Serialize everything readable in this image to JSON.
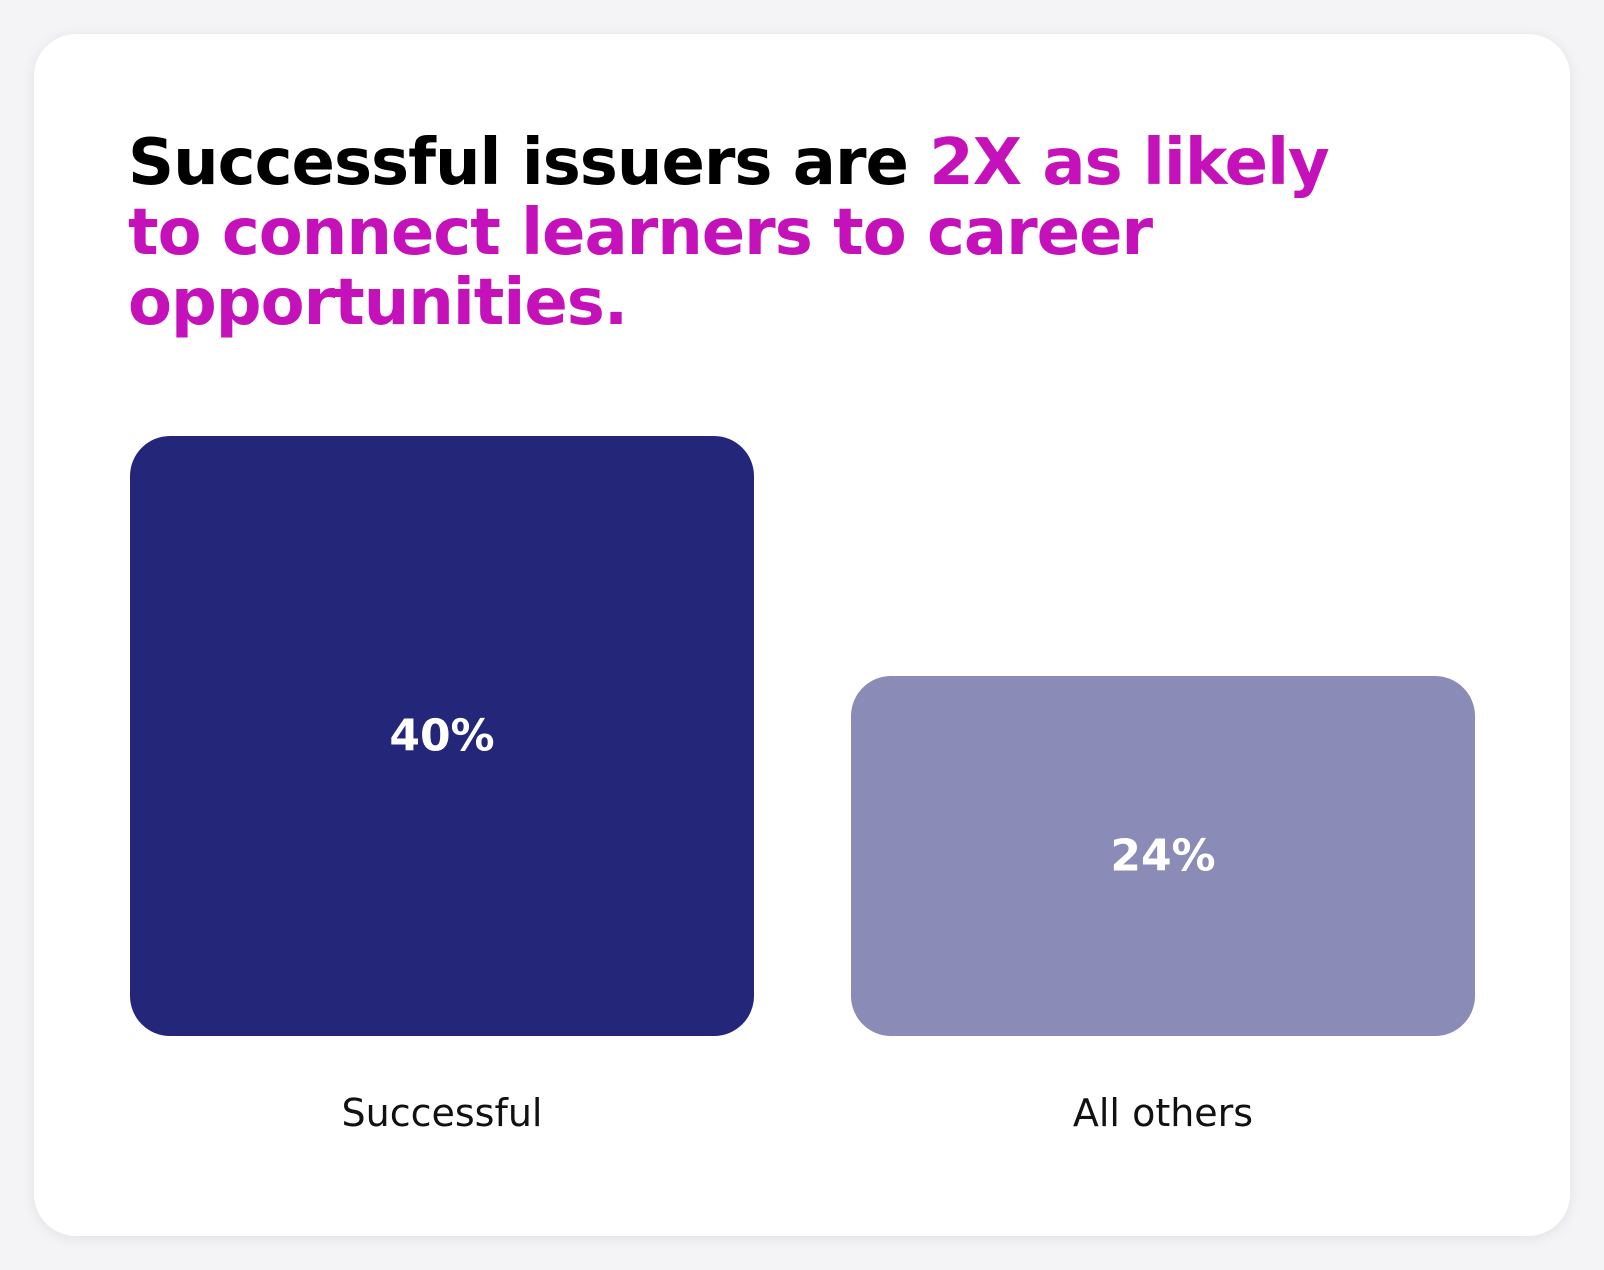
{
  "title": {
    "part1": "Successful issuers are ",
    "part2": "2X as likely to connect learners to career opportunities."
  },
  "colors": {
    "title_text": "#000000",
    "accent": "#c411b9",
    "card_background": "#ffffff"
  },
  "chart_data": {
    "type": "bar",
    "categories": [
      "Successful",
      "All others"
    ],
    "values": [
      40,
      24
    ],
    "data_labels": [
      "40%",
      "24%"
    ],
    "colors": [
      "#24267a",
      "#8a8bb6"
    ],
    "title": "Successful issuers are 2X as likely to connect learners to career opportunities.",
    "xlabel": "",
    "ylabel": "",
    "ylim": [
      0,
      40
    ],
    "grid": false,
    "legend": "none"
  }
}
